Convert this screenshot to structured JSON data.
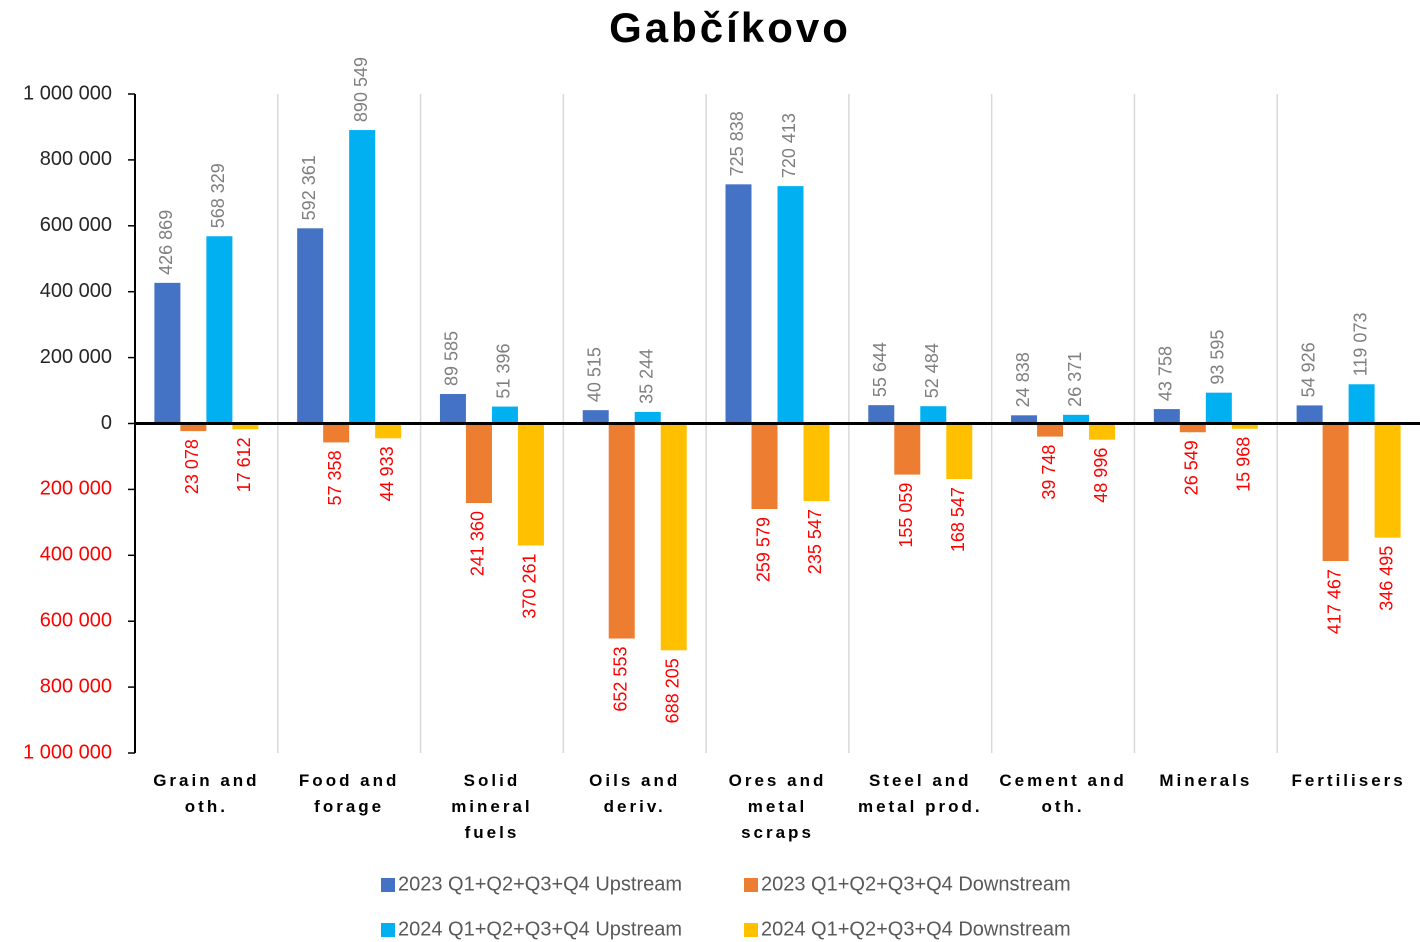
{
  "chart_data": {
    "type": "bar",
    "title": "Gabčíkovo",
    "categories": [
      "Grain and oth.",
      "Food and forage",
      "Solid mineral fuels",
      "Oils and deriv.",
      "Ores and metal scraps",
      "Steel and metal prod.",
      "Cement and oth.",
      "Minerals",
      "Fertilisers"
    ],
    "series": [
      {
        "name": "2023 Q1+Q2+Q3+Q4 Upstream",
        "color": "#4472c4",
        "values": [
          426869,
          592361,
          89585,
          40515,
          725838,
          55644,
          24838,
          43758,
          54926
        ],
        "value_labels": [
          "426 869",
          "592 361",
          "89 585",
          "40 515",
          "725 838",
          "55 644",
          "24 838",
          "43 758",
          "54 926"
        ]
      },
      {
        "name": "2023 Q1+Q2+Q3+Q4 Downstream",
        "color": "#ed7d31",
        "values": [
          -23078,
          -57358,
          -241360,
          -652553,
          -259579,
          -155059,
          -39748,
          -26549,
          -417467
        ],
        "value_labels": [
          "23 078",
          "57 358",
          "241 360",
          "652 553",
          "259 579",
          "155 059",
          "39 748",
          "26 549",
          "417 467"
        ]
      },
      {
        "name": "2024 Q1+Q2+Q3+Q4 Upstream",
        "color": "#00b0f0",
        "values": [
          568329,
          890549,
          51396,
          35244,
          720413,
          52484,
          26371,
          93595,
          119073
        ],
        "value_labels": [
          "568 329",
          "890 549",
          "51 396",
          "35 244",
          "720 413",
          "52 484",
          "26 371",
          "93 595",
          "119 073"
        ]
      },
      {
        "name": "2024 Q1+Q2+Q3+Q4 Downstream",
        "color": "#ffc000",
        "values": [
          -17612,
          -44933,
          -370261,
          -688205,
          -235547,
          -168547,
          -48996,
          -15968,
          -346495
        ],
        "value_labels": [
          "17 612",
          "44 933",
          "370 261",
          "688 205",
          "235 547",
          "168 547",
          "48 996",
          "15 968",
          "346 495"
        ]
      }
    ],
    "ylim": [
      -1000000,
      1000000
    ],
    "yticks": [
      {
        "value": 1000000,
        "label": "1 000 000"
      },
      {
        "value": 800000,
        "label": "800 000"
      },
      {
        "value": 600000,
        "label": "600 000"
      },
      {
        "value": 400000,
        "label": "400 000"
      },
      {
        "value": 200000,
        "label": "200 000"
      },
      0,
      {
        "value": -200000,
        "label": "200 000"
      },
      {
        "value": -400000,
        "label": "400 000"
      },
      {
        "value": -600000,
        "label": "600 000"
      },
      {
        "value": -800000,
        "label": "800 000"
      },
      {
        "value": -1000000,
        "label": "1 000 000"
      }
    ],
    "positive_label_color": "#7f7f7f",
    "negative_label_color": "#ff0000",
    "legend": "bottom"
  }
}
